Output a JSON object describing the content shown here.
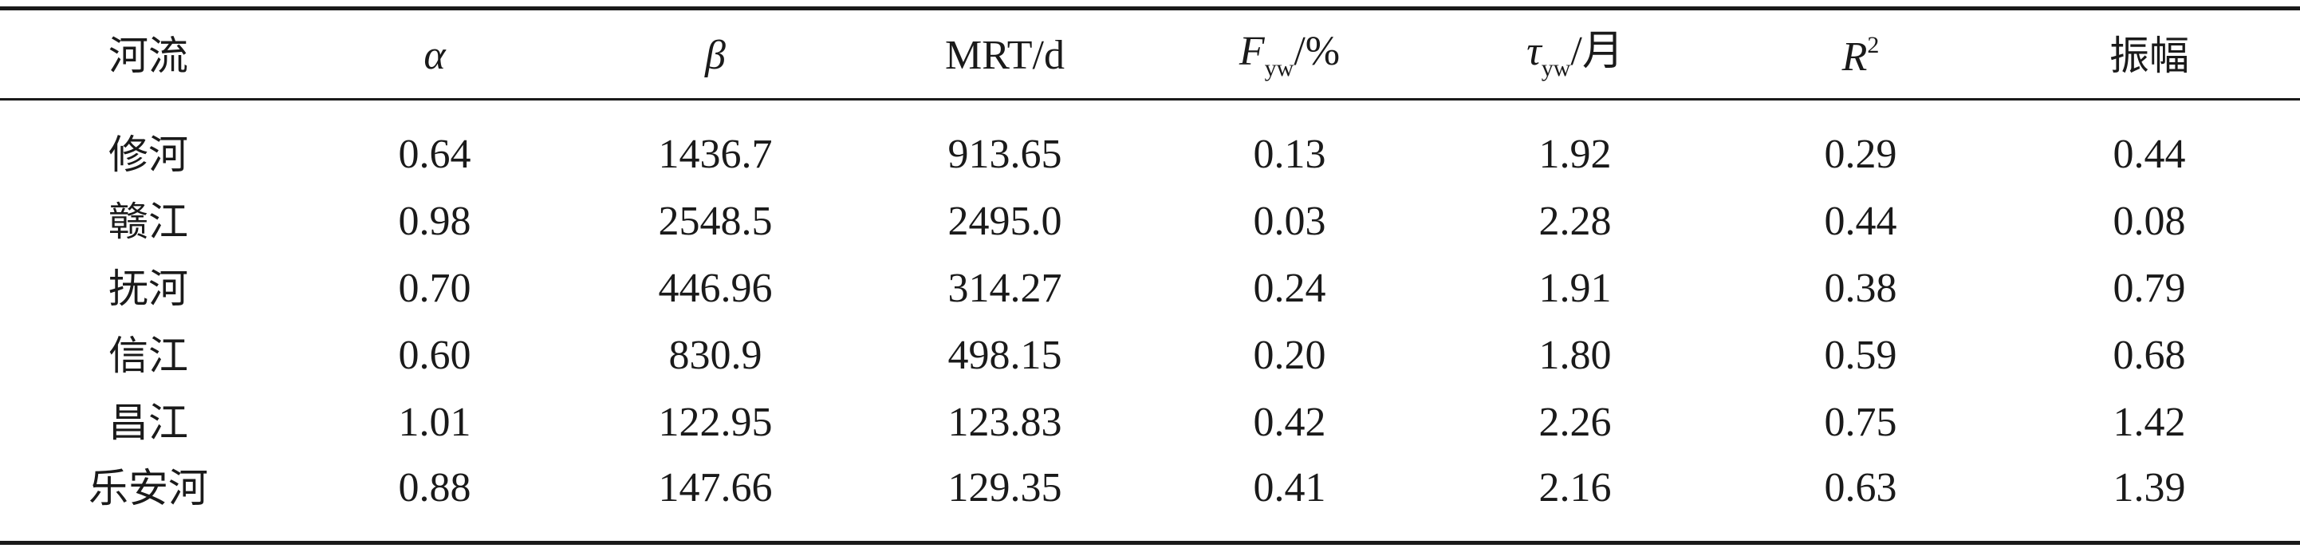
{
  "table": {
    "headers": {
      "river": "河流",
      "alpha": "α",
      "beta": "β",
      "mrt": "MRT/d",
      "fyw_main": "F",
      "fyw_sub": "yw",
      "fyw_unit": "/%",
      "tau_main": "τ",
      "tau_sub": "yw",
      "tau_unit": "/月",
      "r2_main": "R",
      "r2_sup": "2",
      "amplitude": "振幅"
    },
    "rows": [
      {
        "river": "修河",
        "alpha": "0.64",
        "beta": "1436.7",
        "mrt": "913.65",
        "fyw": "0.13",
        "tau": "1.92",
        "r2": "0.29",
        "amp": "0.44"
      },
      {
        "river": "赣江",
        "alpha": "0.98",
        "beta": "2548.5",
        "mrt": "2495.0",
        "fyw": "0.03",
        "tau": "2.28",
        "r2": "0.44",
        "amp": "0.08"
      },
      {
        "river": "抚河",
        "alpha": "0.70",
        "beta": "446.96",
        "mrt": "314.27",
        "fyw": "0.24",
        "tau": "1.91",
        "r2": "0.38",
        "amp": "0.79"
      },
      {
        "river": "信江",
        "alpha": "0.60",
        "beta": "830.9",
        "mrt": "498.15",
        "fyw": "0.20",
        "tau": "1.80",
        "r2": "0.59",
        "amp": "0.68"
      },
      {
        "river": "昌江",
        "alpha": "1.01",
        "beta": "122.95",
        "mrt": "123.83",
        "fyw": "0.42",
        "tau": "2.26",
        "r2": "0.75",
        "amp": "1.42"
      },
      {
        "river": "乐安河",
        "alpha": "0.88",
        "beta": "147.66",
        "mrt": "129.35",
        "fyw": "0.41",
        "tau": "2.16",
        "r2": "0.63",
        "amp": "1.39"
      }
    ]
  }
}
